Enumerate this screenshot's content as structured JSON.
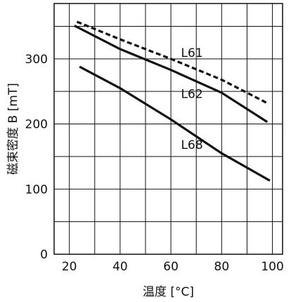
{
  "chart_data": {
    "type": "line",
    "xlabel": "温度 [°C]",
    "ylabel": "磁束密度 B [mT]",
    "xlim": [
      14,
      104
    ],
    "ylim": [
      0,
      385
    ],
    "x_ticks": [
      "20",
      "40",
      "60",
      "80",
      "100"
    ],
    "y_ticks": [
      "0",
      "100",
      "200",
      "300"
    ],
    "grid": true,
    "series": [
      {
        "name": "L61",
        "style": "dashed",
        "x": [
          23,
          40,
          60,
          80,
          98
        ],
        "y": [
          357,
          330,
          300,
          268,
          232
        ]
      },
      {
        "name": "L62",
        "style": "solid",
        "x": [
          22,
          40,
          60,
          80,
          98
        ],
        "y": [
          351,
          315,
          283,
          248,
          203
        ]
      },
      {
        "name": "L68",
        "style": "solid",
        "x": [
          24,
          40,
          60,
          80,
          99
        ],
        "y": [
          288,
          255,
          207,
          155,
          113
        ]
      }
    ],
    "colors": {
      "line": "#111111",
      "grid": "#111111",
      "background": "#ffffff"
    }
  }
}
